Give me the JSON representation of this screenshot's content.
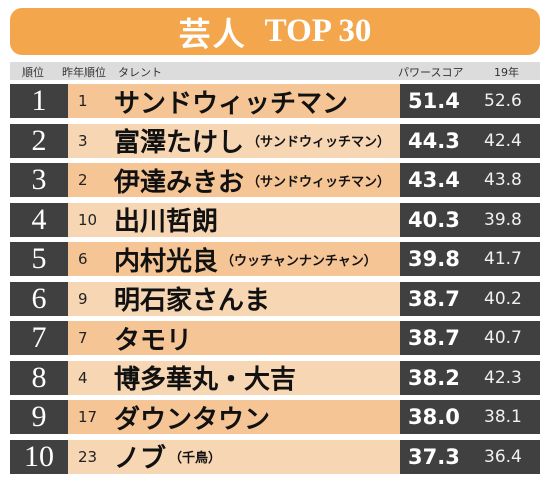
{
  "title": {
    "jp": "芸人",
    "en": "TOP 30"
  },
  "headers": {
    "rank": "順位",
    "prev_rank": "昨年順位",
    "talent": "タレント",
    "power_score": "パワースコア",
    "year19": "19年"
  },
  "rows": [
    {
      "rank": "1",
      "prev": "1",
      "name": "サンドウィッチマン",
      "note": "",
      "score": "51.4",
      "prev_score": "52.6"
    },
    {
      "rank": "2",
      "prev": "3",
      "name": "富澤たけし",
      "note": "（サンドウィッチマン）",
      "score": "44.3",
      "prev_score": "42.4"
    },
    {
      "rank": "3",
      "prev": "2",
      "name": "伊達みきお",
      "note": "（サンドウィッチマン）",
      "score": "43.4",
      "prev_score": "43.8"
    },
    {
      "rank": "4",
      "prev": "10",
      "name": "出川哲朗",
      "note": "",
      "score": "40.3",
      "prev_score": "39.8"
    },
    {
      "rank": "5",
      "prev": "6",
      "name": "内村光良",
      "note": "（ウッチャンナンチャン）",
      "score": "39.8",
      "prev_score": "41.7"
    },
    {
      "rank": "6",
      "prev": "9",
      "name": "明石家さんま",
      "note": "",
      "score": "38.7",
      "prev_score": "40.2"
    },
    {
      "rank": "7",
      "prev": "7",
      "name": "タモリ",
      "note": "",
      "score": "38.7",
      "prev_score": "40.7"
    },
    {
      "rank": "8",
      "prev": "4",
      "name": "博多華丸・大吉",
      "note": "",
      "score": "38.2",
      "prev_score": "42.3"
    },
    {
      "rank": "9",
      "prev": "17",
      "name": "ダウンタウン",
      "note": "",
      "score": "38.0",
      "prev_score": "38.1"
    },
    {
      "rank": "10",
      "prev": "23",
      "name": "ノブ",
      "note": "（千鳥）",
      "score": "37.3",
      "prev_score": "36.4"
    }
  ]
}
